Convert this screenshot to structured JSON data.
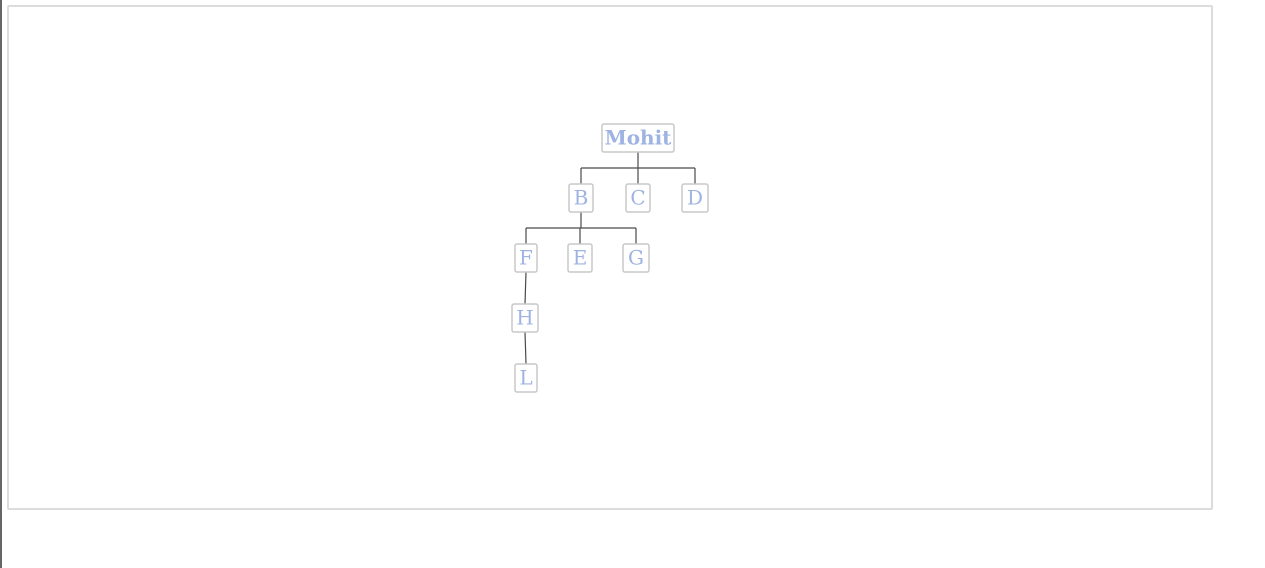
{
  "tree": {
    "nodes": [
      {
        "id": "mohit",
        "label": "Mohit",
        "parent": null
      },
      {
        "id": "b",
        "label": "B",
        "parent": "mohit"
      },
      {
        "id": "c",
        "label": "C",
        "parent": "mohit"
      },
      {
        "id": "d",
        "label": "D",
        "parent": "mohit"
      },
      {
        "id": "f",
        "label": "F",
        "parent": "b"
      },
      {
        "id": "e",
        "label": "E",
        "parent": "b"
      },
      {
        "id": "g",
        "label": "G",
        "parent": "b"
      },
      {
        "id": "h",
        "label": "H",
        "parent": "f"
      },
      {
        "id": "l",
        "label": "L",
        "parent": "h"
      }
    ]
  },
  "colors": {
    "node_text": "#9fb3e2",
    "node_border": "#c8c8c8",
    "edge": "#4a4a4a",
    "frame_border": "#dcdcdc"
  }
}
